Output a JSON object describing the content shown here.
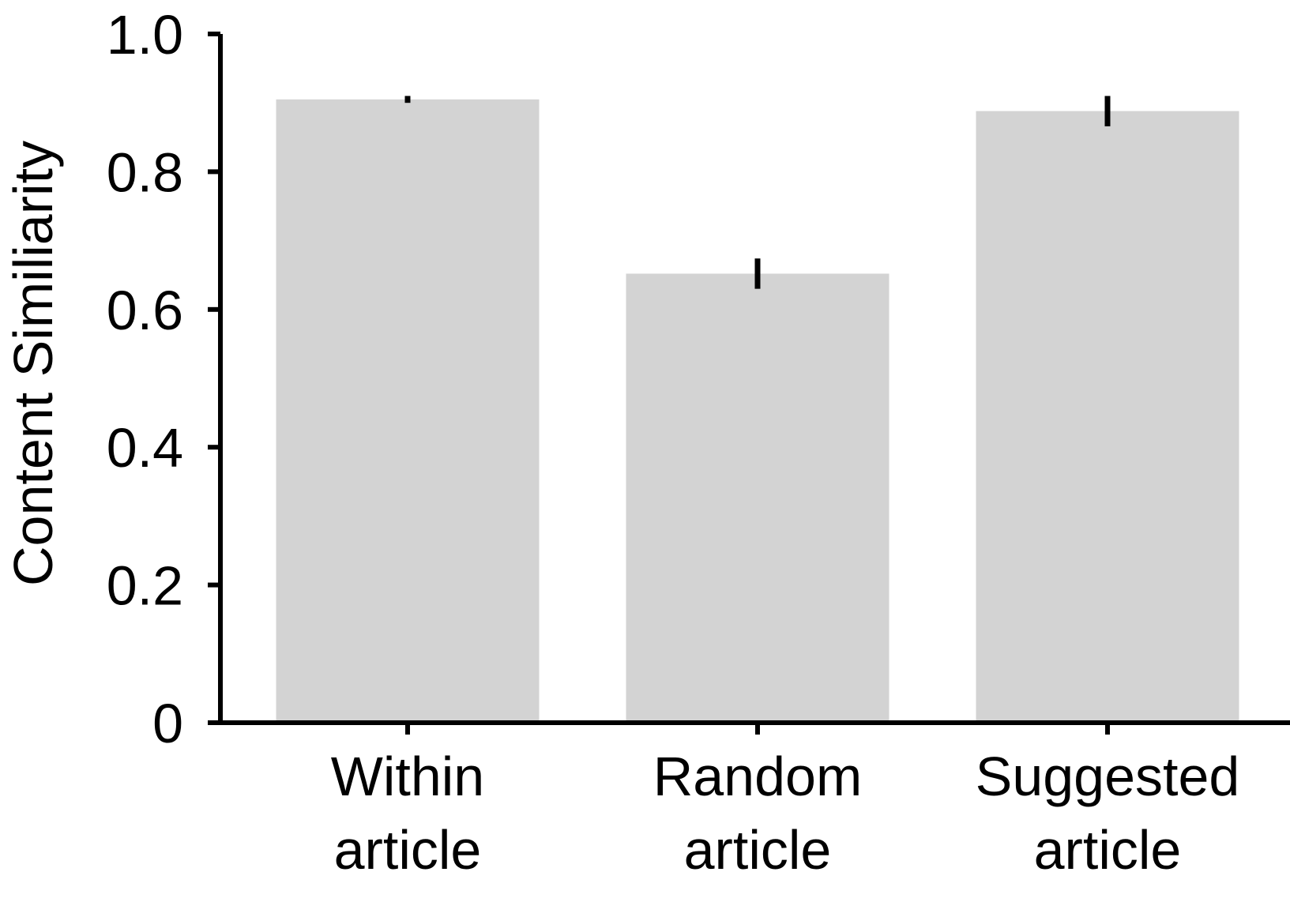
{
  "chart_data": {
    "type": "bar",
    "title": "",
    "xlabel": "",
    "ylabel": "Content Similiarity",
    "categories": [
      [
        "Within",
        "article"
      ],
      [
        "Random",
        "article"
      ],
      [
        "Suggested",
        "article"
      ]
    ],
    "values": [
      0.905,
      0.652,
      0.888
    ],
    "error": [
      0.005,
      0.022,
      0.022
    ],
    "ylim": [
      0,
      1.0
    ],
    "yticks": [
      0,
      0.2,
      0.4,
      0.6,
      0.8,
      1.0
    ],
    "ytick_labels": [
      "0",
      "0.2",
      "0.4",
      "0.6",
      "0.8",
      "1.0"
    ],
    "grid": false,
    "legend": "none",
    "bar_color": "#d3d3d3",
    "error_color": "#000000",
    "axis_color": "#000000"
  }
}
